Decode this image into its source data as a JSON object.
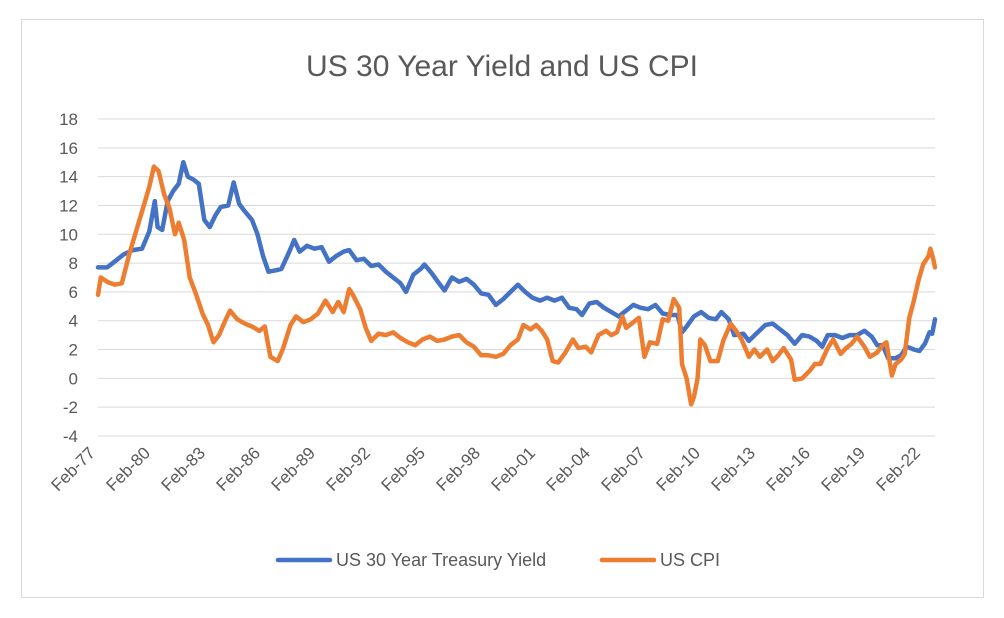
{
  "chart_data": {
    "type": "line",
    "title": "US 30 Year Yield and US CPI",
    "xlabel": "",
    "ylabel": "",
    "ylim": [
      -4,
      18
    ],
    "yticks": [
      -4,
      -2,
      0,
      2,
      4,
      6,
      8,
      10,
      12,
      14,
      16,
      18
    ],
    "x_tick_labels": [
      "Feb-77",
      "Feb-80",
      "Feb-83",
      "Feb-86",
      "Feb-89",
      "Feb-92",
      "Feb-95",
      "Feb-98",
      "Feb-01",
      "Feb-04",
      "Feb-07",
      "Feb-10",
      "Feb-13",
      "Feb-16",
      "Feb-19",
      "Feb-22"
    ],
    "x_tick_years": [
      1977,
      1980,
      1983,
      1986,
      1989,
      1992,
      1995,
      1998,
      2001,
      2004,
      2007,
      2010,
      2013,
      2016,
      2019,
      2022
    ],
    "xlim": [
      1977.1,
      2022.75
    ],
    "grid": true,
    "legend_position": "bottom",
    "series": [
      {
        "name": "US 30 Year Treasury Yield",
        "color": "#4472C4",
        "points": [
          [
            1977.1,
            7.7
          ],
          [
            1977.6,
            7.7
          ],
          [
            1978.0,
            8.1
          ],
          [
            1978.5,
            8.6
          ],
          [
            1979.0,
            8.9
          ],
          [
            1979.5,
            9.0
          ],
          [
            1979.9,
            10.2
          ],
          [
            1980.2,
            12.3
          ],
          [
            1980.35,
            10.5
          ],
          [
            1980.6,
            10.3
          ],
          [
            1980.9,
            12.3
          ],
          [
            1981.2,
            13.0
          ],
          [
            1981.5,
            13.5
          ],
          [
            1981.75,
            15.0
          ],
          [
            1982.0,
            14.0
          ],
          [
            1982.3,
            13.8
          ],
          [
            1982.6,
            13.5
          ],
          [
            1982.9,
            11.0
          ],
          [
            1983.2,
            10.5
          ],
          [
            1983.5,
            11.3
          ],
          [
            1983.8,
            11.9
          ],
          [
            1984.2,
            12.0
          ],
          [
            1984.5,
            13.6
          ],
          [
            1984.8,
            12.1
          ],
          [
            1985.1,
            11.6
          ],
          [
            1985.5,
            11.0
          ],
          [
            1985.8,
            10.0
          ],
          [
            1986.1,
            8.5
          ],
          [
            1986.4,
            7.4
          ],
          [
            1986.8,
            7.5
          ],
          [
            1987.1,
            7.6
          ],
          [
            1987.5,
            8.7
          ],
          [
            1987.8,
            9.6
          ],
          [
            1988.1,
            8.8
          ],
          [
            1988.5,
            9.2
          ],
          [
            1988.9,
            9.0
          ],
          [
            1989.3,
            9.1
          ],
          [
            1989.7,
            8.1
          ],
          [
            1990.1,
            8.5
          ],
          [
            1990.5,
            8.8
          ],
          [
            1990.8,
            8.9
          ],
          [
            1991.2,
            8.2
          ],
          [
            1991.6,
            8.3
          ],
          [
            1992.0,
            7.8
          ],
          [
            1992.4,
            7.9
          ],
          [
            1992.8,
            7.4
          ],
          [
            1993.2,
            7.0
          ],
          [
            1993.6,
            6.6
          ],
          [
            1993.9,
            6.0
          ],
          [
            1994.3,
            7.2
          ],
          [
            1994.7,
            7.6
          ],
          [
            1994.9,
            7.9
          ],
          [
            1995.3,
            7.3
          ],
          [
            1995.7,
            6.6
          ],
          [
            1996.0,
            6.1
          ],
          [
            1996.4,
            7.0
          ],
          [
            1996.8,
            6.7
          ],
          [
            1997.2,
            6.9
          ],
          [
            1997.6,
            6.5
          ],
          [
            1998.0,
            5.9
          ],
          [
            1998.4,
            5.8
          ],
          [
            1998.8,
            5.1
          ],
          [
            1999.2,
            5.5
          ],
          [
            1999.6,
            6.0
          ],
          [
            2000.0,
            6.5
          ],
          [
            2000.4,
            6.0
          ],
          [
            2000.8,
            5.6
          ],
          [
            2001.2,
            5.4
          ],
          [
            2001.6,
            5.6
          ],
          [
            2002.0,
            5.4
          ],
          [
            2002.4,
            5.6
          ],
          [
            2002.8,
            4.9
          ],
          [
            2003.2,
            4.8
          ],
          [
            2003.5,
            4.4
          ],
          [
            2003.9,
            5.2
          ],
          [
            2004.3,
            5.3
          ],
          [
            2004.7,
            4.9
          ],
          [
            2005.1,
            4.6
          ],
          [
            2005.5,
            4.3
          ],
          [
            2005.9,
            4.7
          ],
          [
            2006.3,
            5.1
          ],
          [
            2006.7,
            4.9
          ],
          [
            2007.1,
            4.8
          ],
          [
            2007.5,
            5.1
          ],
          [
            2007.9,
            4.5
          ],
          [
            2008.3,
            4.4
          ],
          [
            2008.7,
            4.4
          ],
          [
            2008.95,
            3.2
          ],
          [
            2009.2,
            3.6
          ],
          [
            2009.6,
            4.3
          ],
          [
            2010.0,
            4.6
          ],
          [
            2010.4,
            4.2
          ],
          [
            2010.8,
            4.1
          ],
          [
            2011.1,
            4.6
          ],
          [
            2011.5,
            4.1
          ],
          [
            2011.8,
            3.0
          ],
          [
            2012.3,
            3.1
          ],
          [
            2012.6,
            2.6
          ],
          [
            2013.0,
            3.1
          ],
          [
            2013.5,
            3.7
          ],
          [
            2013.9,
            3.8
          ],
          [
            2014.3,
            3.4
          ],
          [
            2014.7,
            3.0
          ],
          [
            2015.1,
            2.4
          ],
          [
            2015.5,
            3.0
          ],
          [
            2015.9,
            2.9
          ],
          [
            2016.3,
            2.6
          ],
          [
            2016.6,
            2.2
          ],
          [
            2016.9,
            3.0
          ],
          [
            2017.3,
            3.0
          ],
          [
            2017.7,
            2.8
          ],
          [
            2018.1,
            3.0
          ],
          [
            2018.5,
            3.0
          ],
          [
            2018.9,
            3.3
          ],
          [
            2019.3,
            2.9
          ],
          [
            2019.6,
            2.3
          ],
          [
            2019.9,
            2.3
          ],
          [
            2020.2,
            1.4
          ],
          [
            2020.6,
            1.4
          ],
          [
            2020.9,
            1.6
          ],
          [
            2021.2,
            2.2
          ],
          [
            2021.6,
            2.0
          ],
          [
            2021.9,
            1.9
          ],
          [
            2022.2,
            2.4
          ],
          [
            2022.45,
            3.2
          ],
          [
            2022.6,
            3.1
          ],
          [
            2022.75,
            4.1
          ]
        ]
      },
      {
        "name": "US CPI",
        "color": "#ED7D31",
        "points": [
          [
            1977.1,
            5.8
          ],
          [
            1977.25,
            7.0
          ],
          [
            1977.6,
            6.7
          ],
          [
            1978.0,
            6.5
          ],
          [
            1978.4,
            6.6
          ],
          [
            1978.8,
            8.6
          ],
          [
            1979.2,
            10.3
          ],
          [
            1979.6,
            12.0
          ],
          [
            1979.9,
            13.3
          ],
          [
            1980.15,
            14.7
          ],
          [
            1980.4,
            14.4
          ],
          [
            1980.7,
            12.8
          ],
          [
            1981.0,
            11.8
          ],
          [
            1981.3,
            10.0
          ],
          [
            1981.5,
            10.8
          ],
          [
            1981.8,
            9.6
          ],
          [
            1982.1,
            7.0
          ],
          [
            1982.4,
            6.0
          ],
          [
            1982.8,
            4.5
          ],
          [
            1983.1,
            3.7
          ],
          [
            1983.4,
            2.5
          ],
          [
            1983.7,
            3.0
          ],
          [
            1984.0,
            3.9
          ],
          [
            1984.3,
            4.7
          ],
          [
            1984.7,
            4.1
          ],
          [
            1985.1,
            3.8
          ],
          [
            1985.5,
            3.6
          ],
          [
            1985.9,
            3.3
          ],
          [
            1986.2,
            3.6
          ],
          [
            1986.5,
            1.5
          ],
          [
            1986.9,
            1.2
          ],
          [
            1987.2,
            2.1
          ],
          [
            1987.6,
            3.7
          ],
          [
            1987.9,
            4.3
          ],
          [
            1988.3,
            3.9
          ],
          [
            1988.7,
            4.1
          ],
          [
            1989.1,
            4.5
          ],
          [
            1989.5,
            5.4
          ],
          [
            1989.9,
            4.6
          ],
          [
            1990.2,
            5.3
          ],
          [
            1990.5,
            4.6
          ],
          [
            1990.8,
            6.2
          ],
          [
            1991.0,
            5.8
          ],
          [
            1991.4,
            4.8
          ],
          [
            1991.7,
            3.5
          ],
          [
            1992.0,
            2.6
          ],
          [
            1992.4,
            3.1
          ],
          [
            1992.8,
            3.0
          ],
          [
            1993.2,
            3.2
          ],
          [
            1993.6,
            2.8
          ],
          [
            1994.0,
            2.5
          ],
          [
            1994.4,
            2.3
          ],
          [
            1994.8,
            2.7
          ],
          [
            1995.2,
            2.9
          ],
          [
            1995.6,
            2.6
          ],
          [
            1996.0,
            2.7
          ],
          [
            1996.4,
            2.9
          ],
          [
            1996.8,
            3.0
          ],
          [
            1997.2,
            2.5
          ],
          [
            1997.6,
            2.2
          ],
          [
            1998.0,
            1.6
          ],
          [
            1998.4,
            1.6
          ],
          [
            1998.8,
            1.5
          ],
          [
            1999.2,
            1.7
          ],
          [
            1999.6,
            2.3
          ],
          [
            2000.0,
            2.7
          ],
          [
            2000.3,
            3.7
          ],
          [
            2000.7,
            3.4
          ],
          [
            2001.0,
            3.7
          ],
          [
            2001.3,
            3.3
          ],
          [
            2001.6,
            2.7
          ],
          [
            2001.9,
            1.2
          ],
          [
            2002.2,
            1.1
          ],
          [
            2002.6,
            1.8
          ],
          [
            2003.0,
            2.7
          ],
          [
            2003.3,
            2.1
          ],
          [
            2003.7,
            2.2
          ],
          [
            2004.0,
            1.8
          ],
          [
            2004.4,
            3.0
          ],
          [
            2004.8,
            3.3
          ],
          [
            2005.1,
            3.0
          ],
          [
            2005.4,
            3.2
          ],
          [
            2005.7,
            4.3
          ],
          [
            2005.9,
            3.5
          ],
          [
            2006.3,
            3.9
          ],
          [
            2006.6,
            4.2
          ],
          [
            2006.9,
            1.5
          ],
          [
            2007.2,
            2.5
          ],
          [
            2007.6,
            2.4
          ],
          [
            2007.9,
            4.1
          ],
          [
            2008.2,
            4.0
          ],
          [
            2008.5,
            5.5
          ],
          [
            2008.8,
            4.9
          ],
          [
            2008.95,
            1.0
          ],
          [
            2009.2,
            0.0
          ],
          [
            2009.45,
            -1.8
          ],
          [
            2009.6,
            -1.3
          ],
          [
            2009.8,
            0.0
          ],
          [
            2009.95,
            2.7
          ],
          [
            2010.2,
            2.3
          ],
          [
            2010.5,
            1.2
          ],
          [
            2010.9,
            1.2
          ],
          [
            2011.2,
            2.6
          ],
          [
            2011.6,
            3.8
          ],
          [
            2011.9,
            3.3
          ],
          [
            2012.2,
            2.7
          ],
          [
            2012.6,
            1.5
          ],
          [
            2012.9,
            2.0
          ],
          [
            2013.2,
            1.5
          ],
          [
            2013.6,
            2.0
          ],
          [
            2013.9,
            1.2
          ],
          [
            2014.2,
            1.6
          ],
          [
            2014.5,
            2.1
          ],
          [
            2014.9,
            1.3
          ],
          [
            2015.1,
            -0.1
          ],
          [
            2015.5,
            0.0
          ],
          [
            2015.9,
            0.5
          ],
          [
            2016.2,
            1.0
          ],
          [
            2016.5,
            1.0
          ],
          [
            2016.9,
            2.1
          ],
          [
            2017.2,
            2.7
          ],
          [
            2017.6,
            1.7
          ],
          [
            2017.9,
            2.1
          ],
          [
            2018.2,
            2.4
          ],
          [
            2018.5,
            2.9
          ],
          [
            2018.9,
            2.2
          ],
          [
            2019.2,
            1.5
          ],
          [
            2019.6,
            1.8
          ],
          [
            2019.9,
            2.3
          ],
          [
            2020.1,
            2.5
          ],
          [
            2020.4,
            0.2
          ],
          [
            2020.6,
            1.0
          ],
          [
            2020.9,
            1.3
          ],
          [
            2021.1,
            1.7
          ],
          [
            2021.35,
            4.2
          ],
          [
            2021.6,
            5.4
          ],
          [
            2021.85,
            6.8
          ],
          [
            2022.1,
            7.9
          ],
          [
            2022.4,
            8.5
          ],
          [
            2022.5,
            9.0
          ],
          [
            2022.65,
            8.3
          ],
          [
            2022.75,
            7.7
          ]
        ]
      }
    ]
  }
}
